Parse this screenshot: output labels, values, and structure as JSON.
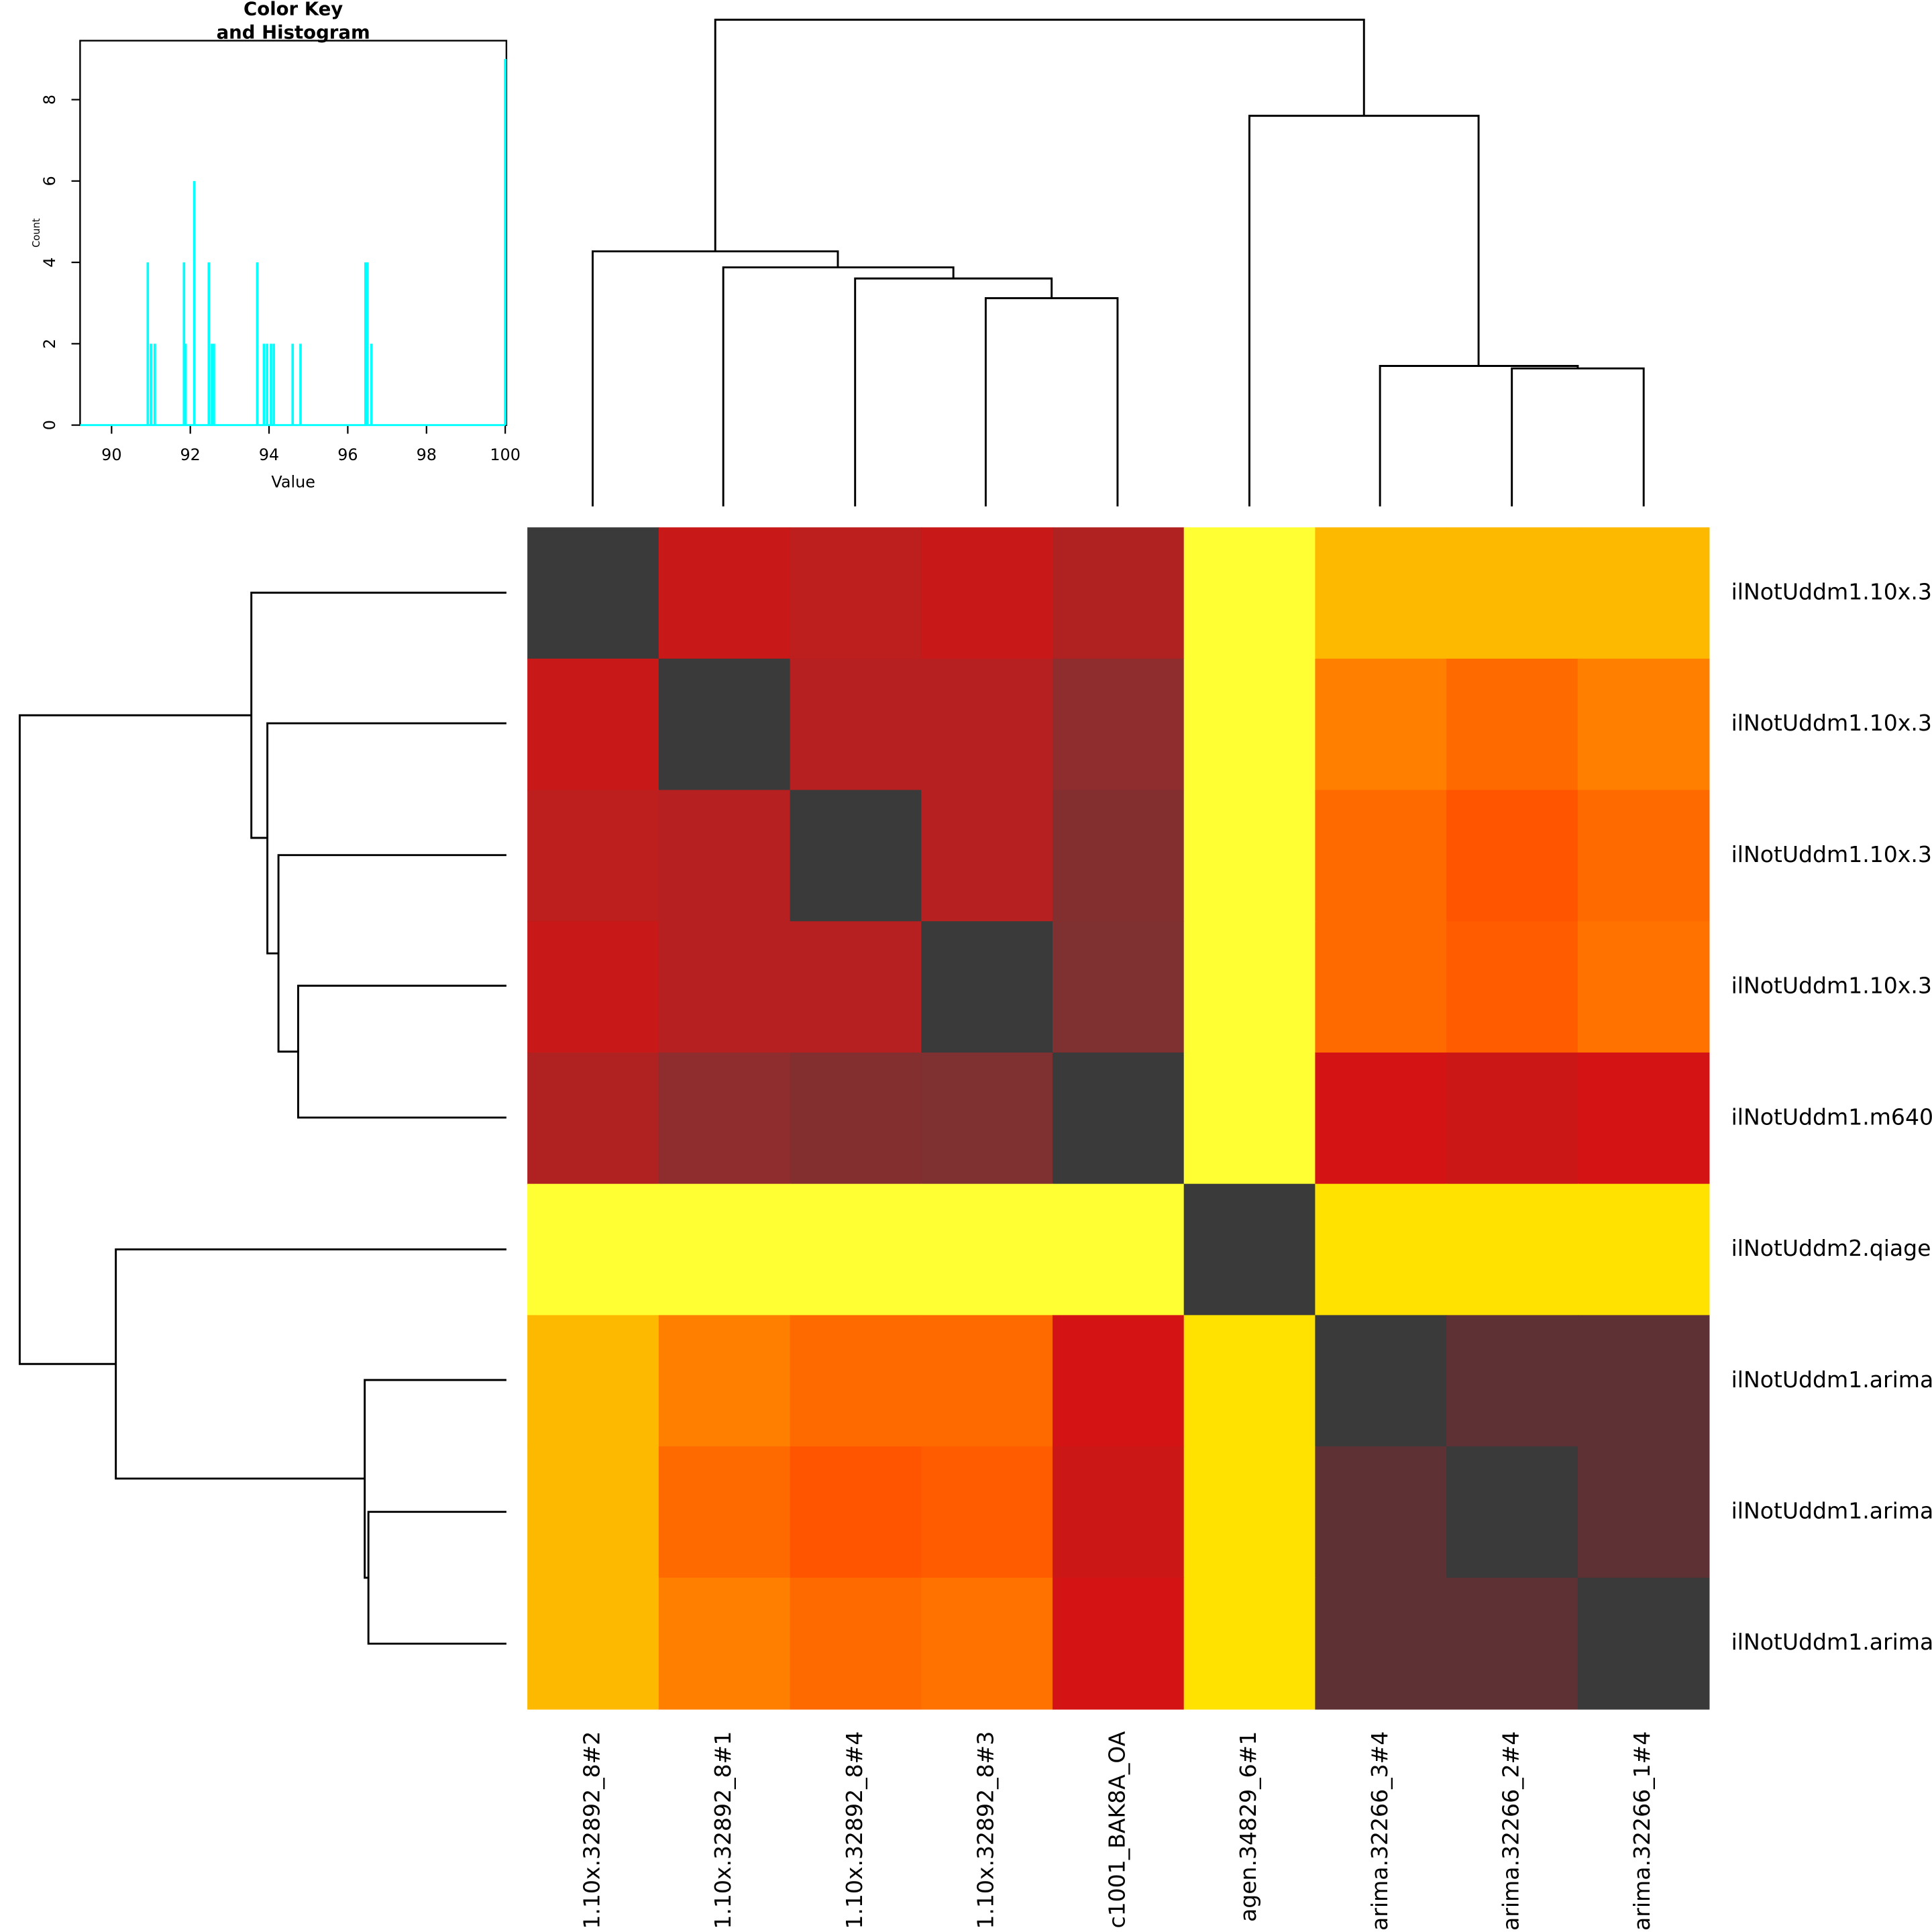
{
  "chart_data": [
    {
      "type": "heatmap",
      "row_labels": [
        "ilNotUddm1.10x.3",
        "ilNotUddm1.10x.3",
        "ilNotUddm1.10x.3",
        "ilNotUddm1.10x.3",
        "ilNotUddm1.m640",
        "ilNotUddm2.qiage",
        "ilNotUddm1.arima",
        "ilNotUddm1.arima",
        "ilNotUddm1.arima"
      ],
      "col_labels": [
        "1.10x.32892_8#2",
        "1.10x.32892_8#1",
        "1.10x.32892_8#4",
        "1.10x.32892_8#3",
        "c1001_BAK8A_OA",
        "agen.34829_6#1",
        "arima.32266_3#4",
        "arima.32266_2#4",
        "arima.32266_1#4"
      ],
      "values": [
        [
          100,
          94.0,
          94.3,
          94.0,
          94.5,
          91.0,
          92.0,
          92.0,
          92.0
        ],
        [
          94.0,
          100,
          94.4,
          94.4,
          94.9,
          91.0,
          92.5,
          93.0,
          92.5
        ],
        [
          94.3,
          94.4,
          100,
          94.4,
          95.1,
          91.0,
          93.0,
          93.3,
          93.0
        ],
        [
          94.0,
          94.4,
          94.4,
          100,
          95.2,
          91.0,
          93.0,
          93.2,
          92.8
        ],
        [
          94.5,
          94.9,
          95.1,
          95.2,
          100,
          91.0,
          93.7,
          93.9,
          93.7
        ],
        [
          91.0,
          91.0,
          91.0,
          91.0,
          91.0,
          100,
          91.5,
          91.5,
          91.5
        ],
        [
          92.0,
          92.5,
          93.0,
          93.0,
          93.7,
          91.5,
          100,
          96.5,
          96.5
        ],
        [
          92.0,
          93.0,
          93.3,
          93.2,
          93.9,
          91.5,
          96.5,
          100,
          96.5
        ],
        [
          92.0,
          92.5,
          93.0,
          92.8,
          93.7,
          91.5,
          96.5,
          96.5,
          100
        ]
      ],
      "colorscale": [
        [
          91.0,
          "#ffff33"
        ],
        [
          91.5,
          "#ffe200"
        ],
        [
          92.0,
          "#fdb900"
        ],
        [
          92.5,
          "#ff7f00"
        ],
        [
          93.0,
          "#ff6a00"
        ],
        [
          93.3,
          "#ff5500"
        ],
        [
          93.7,
          "#d41414"
        ],
        [
          94.0,
          "#c81818"
        ],
        [
          94.3,
          "#bd1e1e"
        ],
        [
          94.5,
          "#b02222"
        ],
        [
          94.9,
          "#8f2c2e"
        ],
        [
          95.2,
          "#7f3030"
        ],
        [
          96.5,
          "#5e3234"
        ],
        [
          100,
          "#3a3a3a"
        ]
      ]
    },
    {
      "type": "spike",
      "title": [
        "Color Key",
        "and Histogram"
      ],
      "x_label": "Value",
      "y_label": "Count",
      "color": "#00ffff",
      "x": [
        90.92,
        91.0,
        91.1,
        91.84,
        91.88,
        92.1,
        92.47,
        92.55,
        92.6,
        93.7,
        93.87,
        93.95,
        94.05,
        94.12,
        94.6,
        94.8,
        96.45,
        96.5,
        96.6,
        100
      ],
      "values": [
        4,
        2,
        2,
        4,
        2,
        6,
        4,
        2,
        2,
        4,
        2,
        2,
        2,
        2,
        2,
        2,
        4,
        4,
        2,
        9
      ],
      "xlim": [
        89.2,
        100.03
      ],
      "ylim": [
        0,
        9.45
      ],
      "xticks": [
        90,
        92,
        94,
        96,
        98,
        100
      ],
      "yticks": [
        0,
        2,
        4,
        6,
        8
      ]
    }
  ]
}
